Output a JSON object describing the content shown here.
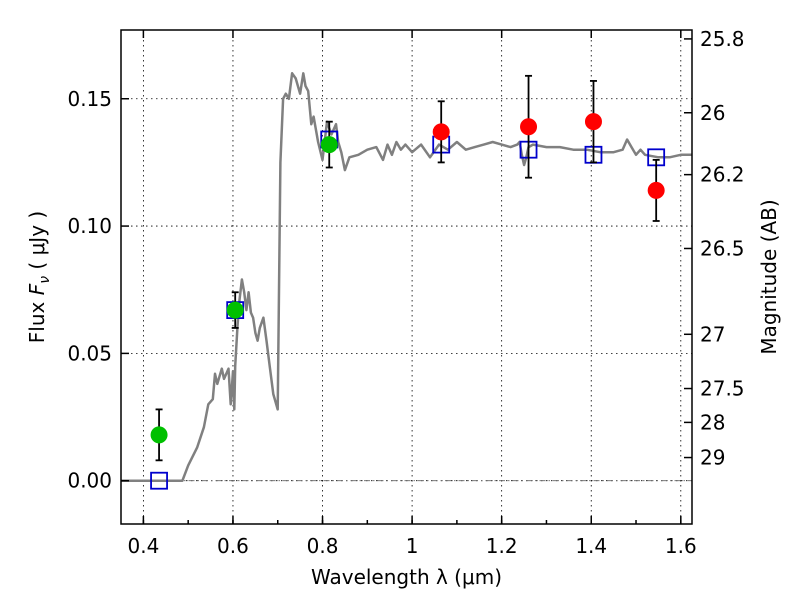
{
  "chart_data": {
    "type": "scatter",
    "xlabel": "Wavelength  λ (μm)",
    "ylabel": "Flux  Fν  ( μJy )",
    "y2label": "Magnitude (AB)",
    "xlim": [
      0.35,
      1.625
    ],
    "ylim": [
      -0.017,
      0.177
    ],
    "x_ticks": [
      0.4,
      0.6,
      0.8,
      1.0,
      1.2,
      1.4,
      1.6
    ],
    "x_tick_labels": [
      "0.4",
      "0.6",
      "0.8",
      "1",
      "1.2",
      "1.4",
      "1.6"
    ],
    "y_ticks": [
      0.0,
      0.05,
      0.1,
      0.15
    ],
    "y_tick_labels": [
      "0.00",
      "0.05",
      "0.10",
      "0.15"
    ],
    "y2_ticks": [
      {
        "label": "25.8",
        "flux": 0.1735
      },
      {
        "label": "26",
        "flux": 0.1445
      },
      {
        "label": "26.2",
        "flux": 0.1202
      },
      {
        "label": "26.5",
        "flux": 0.0912
      },
      {
        "label": "27",
        "flux": 0.0575
      },
      {
        "label": "27.5",
        "flux": 0.0362
      },
      {
        "label": "28",
        "flux": 0.0229
      },
      {
        "label": "29",
        "flux": 0.0091
      }
    ],
    "grid": true,
    "zero_line": 0.0,
    "series": [
      {
        "style": "line",
        "color": "#808080",
        "x": [
          0.35,
          0.4,
          0.45,
          0.487,
          0.5,
          0.52,
          0.535,
          0.545,
          0.555,
          0.56,
          0.565,
          0.575,
          0.58,
          0.59,
          0.595,
          0.6,
          0.603,
          0.605,
          0.61,
          0.614,
          0.62,
          0.625,
          0.63,
          0.635,
          0.64,
          0.645,
          0.65,
          0.655,
          0.66,
          0.668,
          0.675,
          0.682,
          0.69,
          0.7,
          0.706,
          0.712,
          0.718,
          0.725,
          0.732,
          0.74,
          0.75,
          0.757,
          0.762,
          0.768,
          0.775,
          0.78,
          0.79,
          0.8,
          0.81,
          0.82,
          0.83,
          0.835,
          0.842,
          0.85,
          0.86,
          0.88,
          0.9,
          0.92,
          0.935,
          0.945,
          0.955,
          0.965,
          0.975,
          0.985,
          1.0,
          1.02,
          1.04,
          1.06,
          1.08,
          1.1,
          1.12,
          1.14,
          1.16,
          1.18,
          1.2,
          1.22,
          1.235,
          1.24,
          1.245,
          1.25,
          1.255,
          1.26,
          1.27,
          1.3,
          1.33,
          1.36,
          1.39,
          1.42,
          1.45,
          1.47,
          1.48,
          1.49,
          1.5,
          1.51,
          1.52,
          1.55,
          1.575,
          1.6,
          1.625
        ],
        "y": [
          0.0,
          0.0,
          0.0,
          0.0,
          0.006,
          0.013,
          0.021,
          0.03,
          0.032,
          0.042,
          0.038,
          0.044,
          0.04,
          0.044,
          0.03,
          0.043,
          0.028,
          0.045,
          0.06,
          0.07,
          0.079,
          0.074,
          0.067,
          0.074,
          0.066,
          0.064,
          0.058,
          0.055,
          0.06,
          0.064,
          0.055,
          0.045,
          0.034,
          0.028,
          0.125,
          0.15,
          0.152,
          0.15,
          0.16,
          0.158,
          0.152,
          0.16,
          0.155,
          0.153,
          0.14,
          0.143,
          0.133,
          0.126,
          0.141,
          0.136,
          0.14,
          0.133,
          0.129,
          0.122,
          0.127,
          0.128,
          0.13,
          0.131,
          0.126,
          0.132,
          0.128,
          0.133,
          0.13,
          0.132,
          0.129,
          0.132,
          0.127,
          0.132,
          0.13,
          0.133,
          0.13,
          0.131,
          0.132,
          0.133,
          0.132,
          0.131,
          0.132,
          0.133,
          0.128,
          0.124,
          0.127,
          0.131,
          0.132,
          0.131,
          0.131,
          0.13,
          0.13,
          0.129,
          0.129,
          0.13,
          0.134,
          0.131,
          0.128,
          0.13,
          0.128,
          0.127,
          0.127,
          0.128,
          0.128
        ]
      },
      {
        "style": "errorbar-points",
        "color": "#00c000",
        "x": [
          0.435,
          0.605,
          0.815
        ],
        "y": [
          0.018,
          0.067,
          0.132
        ],
        "yerr": [
          0.01,
          0.007,
          0.009
        ]
      },
      {
        "style": "errorbar-points",
        "color": "#ff0000",
        "x": [
          1.065,
          1.26,
          1.405,
          1.545
        ],
        "y": [
          0.137,
          0.139,
          0.141,
          0.114
        ],
        "yerr": [
          0.012,
          0.02,
          0.016,
          0.012
        ]
      },
      {
        "style": "open-squares",
        "color": "#0000cc",
        "x": [
          0.435,
          0.605,
          0.815,
          1.065,
          1.26,
          1.405,
          1.545
        ],
        "y": [
          0.0,
          0.067,
          0.134,
          0.132,
          0.13,
          0.128,
          0.127
        ]
      }
    ]
  }
}
